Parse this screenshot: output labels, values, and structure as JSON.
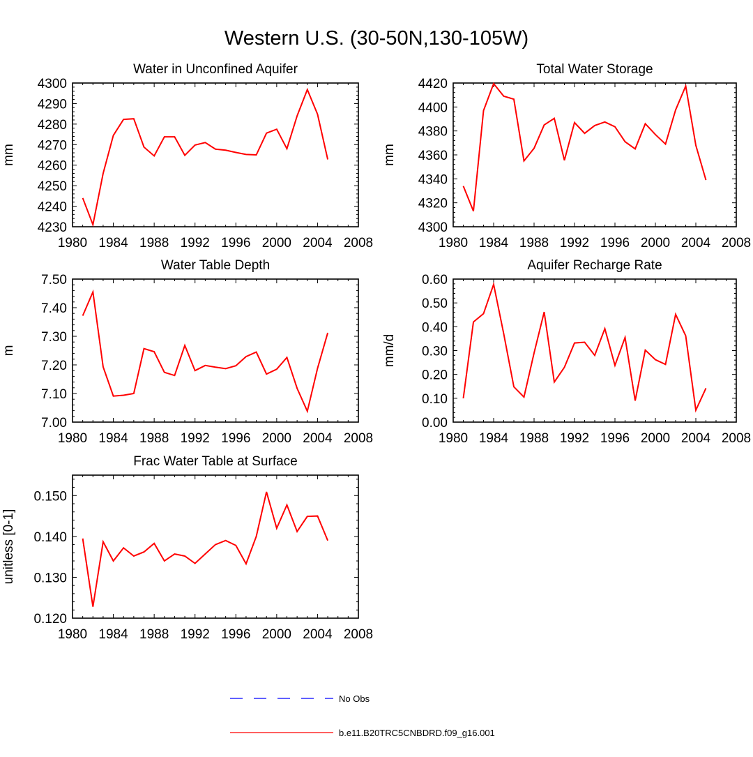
{
  "figure_title": "Western U.S. (30-50N,130-105W)",
  "colors": {
    "model": "#ff0000",
    "obs": "#0000ff",
    "axes": "#000000"
  },
  "legend": {
    "obs_label": "No Obs",
    "model_label": "b.e11.B20TRC5CNBDRD.f09_g16.001"
  },
  "chart_data": [
    {
      "type": "line",
      "title": "Water in Unconfined Aquifer",
      "xlabel": "",
      "ylabel": "mm",
      "xlim": [
        1980,
        2008
      ],
      "ylim": [
        4230,
        4300
      ],
      "xticks": [
        1980,
        1984,
        1988,
        1992,
        1996,
        2000,
        2004,
        2008
      ],
      "xtick_labels": [
        "1980",
        "1984",
        "1988",
        "1992",
        "1996",
        "2000",
        "2004",
        "2008"
      ],
      "yticks": [
        4230,
        4240,
        4250,
        4260,
        4270,
        4280,
        4290,
        4300
      ],
      "ytick_labels": [
        "4230",
        "4240",
        "4250",
        "4260",
        "4270",
        "4280",
        "4290",
        "4300"
      ],
      "series": [
        {
          "name": "b.e11.B20TRC5CNBDRD.f09_g16.001",
          "x": [
            1981,
            1982,
            1983,
            1984,
            1985,
            1986,
            1987,
            1988,
            1989,
            1990,
            1991,
            1992,
            1993,
            1994,
            1995,
            1996,
            1997,
            1998,
            1999,
            2000,
            2001,
            2002,
            2003,
            2004,
            2005
          ],
          "y": [
            4244,
            4231,
            4256,
            4274.5,
            4282.3,
            4282.6,
            4268.8,
            4264.5,
            4273.8,
            4273.8,
            4264.8,
            4269.8,
            4271,
            4267.8,
            4267.3,
            4266.2,
            4265.2,
            4265,
            4275.6,
            4277.5,
            4268,
            4284,
            4296.8,
            4284.8,
            4262.8
          ]
        }
      ]
    },
    {
      "type": "line",
      "title": "Total Water Storage",
      "xlabel": "",
      "ylabel": "mm",
      "xlim": [
        1980,
        2008
      ],
      "ylim": [
        4300,
        4420
      ],
      "xticks": [
        1980,
        1984,
        1988,
        1992,
        1996,
        2000,
        2004,
        2008
      ],
      "xtick_labels": [
        "1980",
        "1984",
        "1988",
        "1992",
        "1996",
        "2000",
        "2004",
        "2008"
      ],
      "yticks": [
        4300,
        4320,
        4340,
        4360,
        4380,
        4400,
        4420
      ],
      "ytick_labels": [
        "4300",
        "4320",
        "4340",
        "4360",
        "4380",
        "4400",
        "4420"
      ],
      "series": [
        {
          "name": "b.e11.B20TRC5CNBDRD.f09_g16.001",
          "x": [
            1981,
            1982,
            1983,
            1984,
            1985,
            1986,
            1987,
            1988,
            1989,
            1990,
            1991,
            1992,
            1993,
            1994,
            1995,
            1996,
            1997,
            1998,
            1999,
            2000,
            2001,
            2002,
            2003,
            2004,
            2005
          ],
          "y": [
            4334,
            4313,
            4397,
            4419.5,
            4409,
            4406.5,
            4355,
            4365.5,
            4385,
            4390.5,
            4355.5,
            4387,
            4378,
            4384.5,
            4387.5,
            4383.5,
            4371,
            4365,
            4386,
            4377,
            4369,
            4397.5,
            4417.5,
            4368,
            4339
          ]
        }
      ]
    },
    {
      "type": "line",
      "title": "Water Table Depth",
      "xlabel": "",
      "ylabel": "m",
      "xlim": [
        1980,
        2008
      ],
      "ylim": [
        7.0,
        7.5
      ],
      "xticks": [
        1980,
        1984,
        1988,
        1992,
        1996,
        2000,
        2004,
        2008
      ],
      "xtick_labels": [
        "1980",
        "1984",
        "1988",
        "1992",
        "1996",
        "2000",
        "2004",
        "2008"
      ],
      "yticks": [
        7.0,
        7.1,
        7.2,
        7.3,
        7.4,
        7.5
      ],
      "ytick_labels": [
        "7.00",
        "7.10",
        "7.20",
        "7.30",
        "7.40",
        "7.50"
      ],
      "series": [
        {
          "name": "b.e11.B20TRC5CNBDRD.f09_g16.001",
          "x": [
            1981,
            1982,
            1983,
            1984,
            1985,
            1986,
            1987,
            1988,
            1989,
            1990,
            1991,
            1992,
            1993,
            1994,
            1995,
            1996,
            1997,
            1998,
            1999,
            2000,
            2001,
            2002,
            2003,
            2004,
            2005
          ],
          "y": [
            7.372,
            7.455,
            7.193,
            7.091,
            7.094,
            7.1,
            7.257,
            7.246,
            7.174,
            7.163,
            7.268,
            7.18,
            7.198,
            7.192,
            7.187,
            7.197,
            7.229,
            7.245,
            7.168,
            7.185,
            7.226,
            7.118,
            7.038,
            7.188,
            7.312
          ]
        }
      ]
    },
    {
      "type": "line",
      "title": "Aquifer Recharge Rate",
      "xlabel": "",
      "ylabel": "mm/d",
      "xlim": [
        1980,
        2008
      ],
      "ylim": [
        0.0,
        0.6
      ],
      "xticks": [
        1980,
        1984,
        1988,
        1992,
        1996,
        2000,
        2004,
        2008
      ],
      "xtick_labels": [
        "1980",
        "1984",
        "1988",
        "1992",
        "1996",
        "2000",
        "2004",
        "2008"
      ],
      "yticks": [
        0.0,
        0.1,
        0.2,
        0.3,
        0.4,
        0.5,
        0.6
      ],
      "ytick_labels": [
        "0.00",
        "0.10",
        "0.20",
        "0.30",
        "0.40",
        "0.50",
        "0.60"
      ],
      "series": [
        {
          "name": "b.e11.B20TRC5CNBDRD.f09_g16.001",
          "x": [
            1981,
            1982,
            1983,
            1984,
            1985,
            1986,
            1987,
            1988,
            1989,
            1990,
            1991,
            1992,
            1993,
            1994,
            1995,
            1996,
            1997,
            1998,
            1999,
            2000,
            2001,
            2002,
            2003,
            2004,
            2005
          ],
          "y": [
            0.1,
            0.42,
            0.455,
            0.578,
            0.37,
            0.148,
            0.105,
            0.29,
            0.462,
            0.168,
            0.23,
            0.332,
            0.335,
            0.28,
            0.392,
            0.238,
            0.355,
            0.09,
            0.302,
            0.262,
            0.242,
            0.452,
            0.362,
            0.05,
            0.142
          ]
        }
      ]
    },
    {
      "type": "line",
      "title": "Frac Water Table at Surface",
      "xlabel": "",
      "ylabel": "unitless [0-1]",
      "xlim": [
        1980,
        2008
      ],
      "ylim": [
        0.12,
        0.155
      ],
      "xticks": [
        1980,
        1984,
        1988,
        1992,
        1996,
        2000,
        2004,
        2008
      ],
      "xtick_labels": [
        "1980",
        "1984",
        "1988",
        "1992",
        "1996",
        "2000",
        "2004",
        "2008"
      ],
      "yticks": [
        0.12,
        0.13,
        0.14,
        0.15
      ],
      "ytick_labels": [
        "0.120",
        "0.130",
        "0.140",
        "0.150"
      ],
      "series": [
        {
          "name": "b.e11.B20TRC5CNBDRD.f09_g16.001",
          "x": [
            1981,
            1982,
            1983,
            1984,
            1985,
            1986,
            1987,
            1988,
            1989,
            1990,
            1991,
            1992,
            1993,
            1994,
            1995,
            1996,
            1997,
            1998,
            1999,
            2000,
            2001,
            2002,
            2003,
            2004,
            2005
          ],
          "y": [
            0.1395,
            0.1228,
            0.1387,
            0.134,
            0.1372,
            0.1352,
            0.1362,
            0.1383,
            0.134,
            0.1357,
            0.1352,
            0.1334,
            0.1357,
            0.138,
            0.139,
            0.1378,
            0.1333,
            0.14,
            0.1509,
            0.142,
            0.1477,
            0.1412,
            0.1449,
            0.145,
            0.139
          ]
        }
      ]
    }
  ]
}
